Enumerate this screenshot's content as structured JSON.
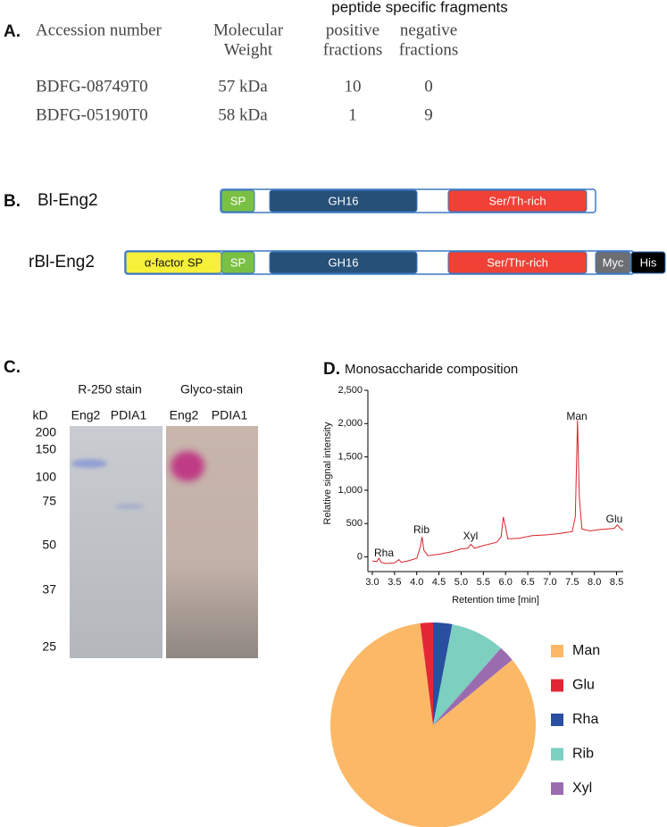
{
  "panel_a": {
    "label": "A.",
    "group_header": "peptide specific fragments",
    "columns": [
      [
        "Accession number"
      ],
      [
        "Molecular",
        "Weight"
      ],
      [
        "positive",
        "fractions"
      ],
      [
        "negative",
        "fractions"
      ]
    ],
    "rows": [
      [
        "BDFG-08749T0",
        "57 kDa",
        10,
        0
      ],
      [
        "BDFG-05190T0",
        "58 kDa",
        1,
        9
      ]
    ]
  },
  "panel_b": {
    "label": "B.",
    "constructs": [
      {
        "name": "Bl-Eng2",
        "domains": [
          "SP",
          "GH16",
          "Ser/Th-rich"
        ]
      },
      {
        "name": "rBl-Eng2",
        "domains": [
          "α-factor SP",
          "SP",
          "GH16",
          "Ser/Thr-rich",
          "Myc",
          "His"
        ]
      }
    ]
  },
  "panel_c": {
    "label": "C.",
    "stains": [
      "R-250 stain",
      "Glyco-stain"
    ],
    "unit": "kD",
    "lanes": [
      "Eng2",
      "PDIA1",
      "Eng2",
      "PDIA1"
    ],
    "markers": [
      200,
      150,
      100,
      75,
      50,
      37,
      25
    ]
  },
  "chart_data": [
    {
      "type": "line",
      "label": "D.",
      "title": "Monosaccharide composition",
      "x_label": "Retention time [min]",
      "y_label": "Relative signal intensity",
      "x": [
        3.0,
        3.1,
        3.15,
        3.2,
        3.3,
        3.5,
        3.6,
        3.65,
        3.8,
        4.0,
        4.08,
        4.12,
        4.16,
        4.25,
        4.5,
        4.8,
        5.0,
        5.15,
        5.22,
        5.3,
        5.5,
        5.8,
        5.9,
        5.95,
        6.0,
        6.05,
        6.3,
        6.6,
        6.9,
        7.2,
        7.5,
        7.57,
        7.62,
        7.66,
        7.72,
        7.9,
        8.1,
        8.3,
        8.45,
        8.52,
        8.58,
        8.65
      ],
      "values": [
        -60,
        -70,
        -20,
        -80,
        -100,
        -90,
        -40,
        -80,
        -60,
        -20,
        150,
        300,
        100,
        20,
        40,
        80,
        120,
        130,
        190,
        130,
        170,
        220,
        300,
        600,
        450,
        270,
        280,
        320,
        330,
        350,
        380,
        600,
        2050,
        900,
        420,
        390,
        410,
        420,
        430,
        480,
        430,
        400
      ],
      "color": "#d9252a",
      "xlim": [
        2.9,
        8.65
      ],
      "ylim": [
        -220,
        2500
      ],
      "xticks": [
        {
          "value": 3.0,
          "label": "3.0"
        },
        3.5,
        {
          "value": 4.0,
          "label": "4.0"
        },
        4.5,
        {
          "value": 5.0,
          "label": "5.0"
        },
        5.5,
        {
          "value": 6.0,
          "label": "6.0"
        },
        6.5,
        {
          "value": 7.0,
          "label": "7.0"
        },
        7.5,
        {
          "value": 8.0,
          "label": "8.0"
        },
        8.5
      ],
      "yticks": [
        0,
        500,
        {
          "value": 1000,
          "label": "1,000"
        },
        {
          "value": 1500,
          "label": "1,500"
        },
        {
          "value": 2000,
          "label": "2,000"
        },
        {
          "value": 2500,
          "label": "2,500"
        }
      ],
      "annotations": [
        "Rha",
        "Rib",
        "Xyl",
        "Man",
        "Glu"
      ]
    },
    {
      "type": "pie",
      "categories": [
        "Man",
        "Glu",
        "Rha",
        "Rib",
        "Xyl"
      ],
      "values": [
        84,
        2,
        3,
        8.5,
        2.5
      ],
      "colors": [
        "#fbb866",
        "#e32636",
        "#2a4fa0",
        "#7dcfc0",
        "#9b6bb0"
      ]
    }
  ]
}
